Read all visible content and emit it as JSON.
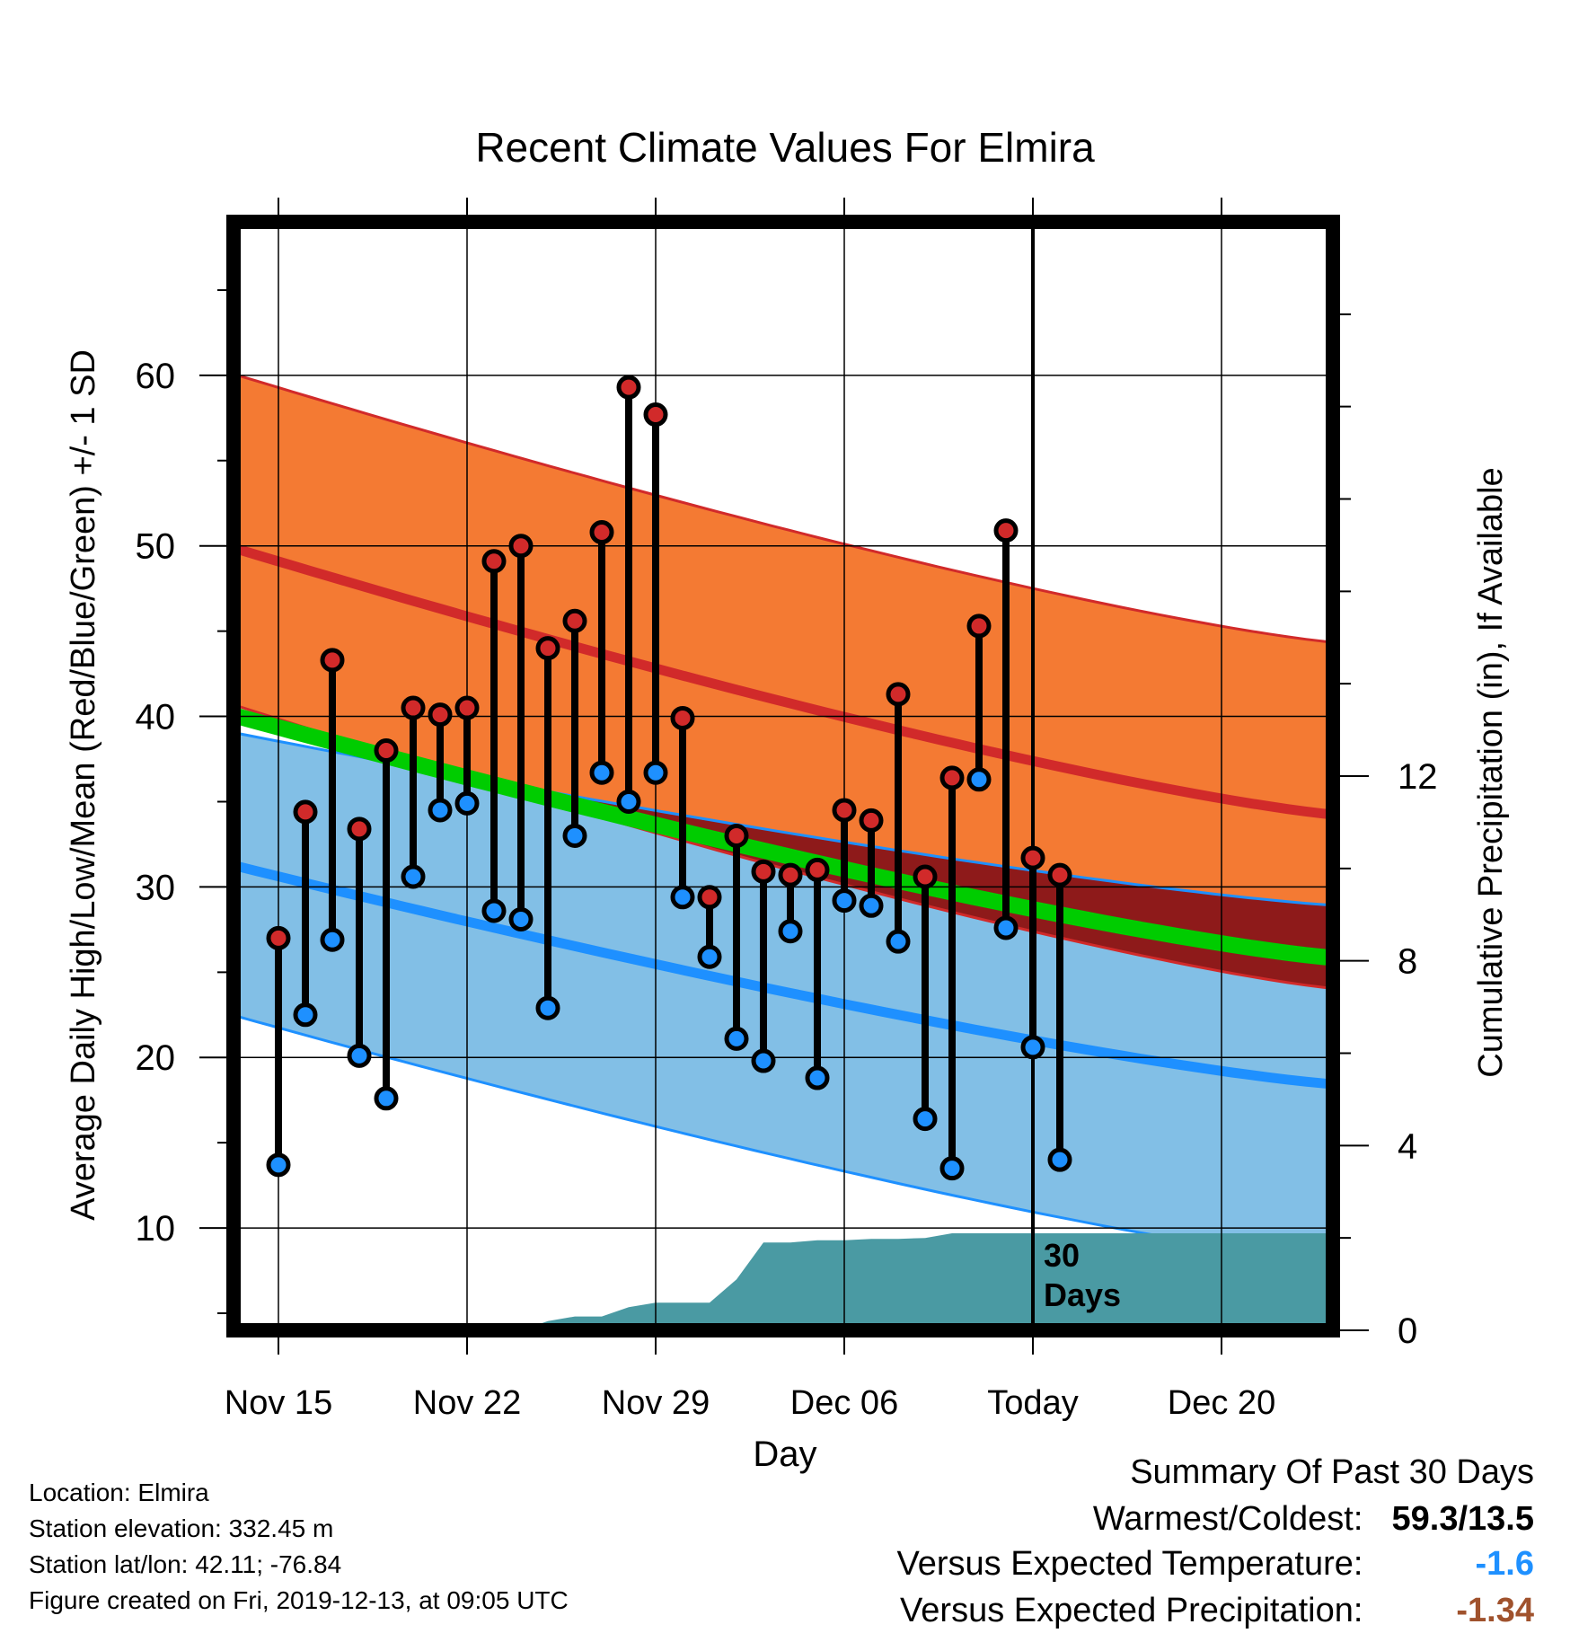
{
  "chart_data": {
    "type": "line",
    "title": "Recent Climate Values For Elmira",
    "xlabel": "Day",
    "ylabel": "Average Daily High/Low/Mean (Red/Blue/Green) +/- 1 SD",
    "y2label": "Cumulative Precipitation (in), If Available",
    "x_ticks": [
      "Nov 15",
      "Nov 22",
      "Nov 29",
      "Dec 06",
      "Today",
      "Dec 20"
    ],
    "y_ticks": [
      10,
      20,
      30,
      40,
      50,
      60
    ],
    "y2_ticks": [
      0,
      4,
      8,
      12
    ],
    "ylim": [
      4,
      69
    ],
    "y2lim": [
      0,
      24
    ],
    "today_label": "30\nDays",
    "normal_high": {
      "start": 49.8,
      "end": 34.2,
      "sd_upper_start": 60.0,
      "sd_upper_end": 44.3,
      "sd_lower_start": 40.6,
      "sd_lower_end": 24.0
    },
    "normal_low": {
      "start": 31.2,
      "end": 18.4,
      "sd_upper_start": 39.0,
      "sd_upper_end": 28.9,
      "sd_lower_start": 22.4,
      "sd_lower_end": 8.0
    },
    "normal_mean": {
      "start": 40.0,
      "end": 25.8
    },
    "observed": {
      "x": [
        1,
        2,
        3,
        4,
        5,
        6,
        7,
        8,
        9,
        10,
        11,
        12,
        13,
        14,
        15,
        16,
        17,
        18,
        19,
        20,
        21,
        22,
        23,
        24,
        25,
        26,
        27,
        28,
        29,
        30
      ],
      "high": [
        27.0,
        34.4,
        43.3,
        33.4,
        38.0,
        40.5,
        40.1,
        40.5,
        49.1,
        50.0,
        44.0,
        45.6,
        50.8,
        59.3,
        57.7,
        39.9,
        29.4,
        33.0,
        30.9,
        30.7,
        31.0,
        34.5,
        33.9,
        41.3,
        30.6,
        36.4,
        45.3,
        50.9,
        31.7,
        30.7
      ],
      "low": [
        13.7,
        22.5,
        26.9,
        20.1,
        17.6,
        30.6,
        34.5,
        34.9,
        28.6,
        28.1,
        22.9,
        33.0,
        36.7,
        35.0,
        36.7,
        29.4,
        25.9,
        21.1,
        19.8,
        27.4,
        18.8,
        29.2,
        28.9,
        26.8,
        16.4,
        13.5,
        36.3,
        27.6,
        20.6,
        14.0
      ]
    },
    "precip_cumulative": {
      "x": [
        1,
        9,
        10,
        11,
        12,
        13,
        14,
        15,
        16,
        17,
        18,
        19,
        20,
        21,
        22,
        23,
        24,
        25,
        26,
        27,
        28,
        29,
        30,
        31,
        32,
        33,
        34,
        35,
        36,
        37,
        38,
        39,
        40,
        41
      ],
      "values": [
        0,
        0,
        0,
        0.2,
        0.3,
        0.3,
        0.5,
        0.6,
        0.6,
        0.6,
        1.1,
        1.9,
        1.9,
        1.95,
        1.95,
        1.98,
        1.98,
        2.0,
        2.1,
        2.1,
        2.1,
        2.1,
        2.1,
        2.1,
        2.1,
        2.1,
        2.1,
        2.1,
        2.1,
        2.1,
        2.1,
        2.1,
        2.1,
        2.1
      ]
    },
    "colors": {
      "high": "#d12a2a",
      "high_band": "#f47a33",
      "low": "#1e90ff",
      "low_band": "#82bfe6",
      "mean": "#00cc00",
      "overlap": "#8e1a1a",
      "precip": "#4a9aa3"
    }
  },
  "info": {
    "location": "Location: Elmira",
    "elevation": "Station elevation: 332.45 m",
    "latlon": "Station lat/lon: 42.11; -76.84",
    "created": "Figure created on Fri, 2019-12-13, at 09:05 UTC"
  },
  "summary": {
    "heading": "Summary Of Past 30 Days",
    "warm_cold_label": "Warmest/Coldest:",
    "warm_cold_value": "59.3/13.5",
    "temp_label": "Versus Expected Temperature:",
    "temp_value": "-1.6",
    "temp_color": "#1e90ff",
    "precip_label": "Versus Expected Precipitation:",
    "precip_value": "-1.34",
    "precip_color": "#a0522d"
  }
}
